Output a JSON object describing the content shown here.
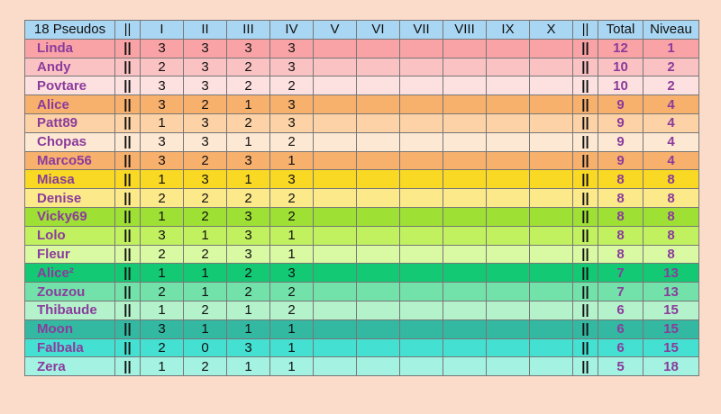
{
  "table": {
    "columns": [
      "18 Pseudos",
      "||",
      "I",
      "II",
      "III",
      "IV",
      "V",
      "VI",
      "VII",
      "VIII",
      "IX",
      "X",
      "||",
      "Total",
      "Niveau"
    ],
    "header_color": "#a9d6f2",
    "rows": [
      {
        "pseudo": "Linda",
        "scores": [
          3,
          3,
          3,
          3
        ],
        "total": 12,
        "niveau": 1,
        "color": "#f9a3a6"
      },
      {
        "pseudo": "Andy",
        "scores": [
          2,
          3,
          2,
          3
        ],
        "total": 10,
        "niveau": 2,
        "color": "#fbc2c3"
      },
      {
        "pseudo": "Povtare",
        "scores": [
          3,
          3,
          2,
          2
        ],
        "total": 10,
        "niveau": 2,
        "color": "#fde0e0"
      },
      {
        "pseudo": "Alice",
        "scores": [
          3,
          2,
          1,
          3
        ],
        "total": 9,
        "niveau": 4,
        "color": "#f8b06d"
      },
      {
        "pseudo": "Patt89",
        "scores": [
          1,
          3,
          2,
          3
        ],
        "total": 9,
        "niveau": 4,
        "color": "#fcd2a6"
      },
      {
        "pseudo": "Chopas",
        "scores": [
          3,
          3,
          1,
          2
        ],
        "total": 9,
        "niveau": 4,
        "color": "#fde8d3"
      },
      {
        "pseudo": "Marco56",
        "scores": [
          3,
          2,
          3,
          1
        ],
        "total": 9,
        "niveau": 4,
        "color": "#f8b06d"
      },
      {
        "pseudo": "Miasa",
        "scores": [
          1,
          3,
          1,
          3
        ],
        "total": 8,
        "niveau": 8,
        "color": "#f9d923"
      },
      {
        "pseudo": "Denise",
        "scores": [
          2,
          2,
          2,
          2
        ],
        "total": 8,
        "niveau": 8,
        "color": "#fbe98a"
      },
      {
        "pseudo": "Vicky69",
        "scores": [
          1,
          2,
          3,
          2
        ],
        "total": 8,
        "niveau": 8,
        "color": "#9fe034"
      },
      {
        "pseudo": "Lolo",
        "scores": [
          3,
          1,
          3,
          1
        ],
        "total": 8,
        "niveau": 8,
        "color": "#c2f15f"
      },
      {
        "pseudo": "Fleur",
        "scores": [
          2,
          2,
          3,
          1
        ],
        "total": 8,
        "niveau": 8,
        "color": "#daf9a3"
      },
      {
        "pseudo": "Alice²",
        "scores": [
          1,
          1,
          2,
          3
        ],
        "total": 7,
        "niveau": 13,
        "color": "#13c974"
      },
      {
        "pseudo": "Zouzou",
        "scores": [
          2,
          1,
          2,
          2
        ],
        "total": 7,
        "niveau": 13,
        "color": "#72e2aa"
      },
      {
        "pseudo": "Thibaude",
        "scores": [
          1,
          2,
          1,
          2
        ],
        "total": 6,
        "niveau": 15,
        "color": "#b3f2cb"
      },
      {
        "pseudo": "Moon",
        "scores": [
          3,
          1,
          1,
          1
        ],
        "total": 6,
        "niveau": 15,
        "color": "#33b8a2"
      },
      {
        "pseudo": "Falbala",
        "scores": [
          2,
          0,
          3,
          1
        ],
        "total": 6,
        "niveau": 15,
        "color": "#44e0d2"
      },
      {
        "pseudo": "Zera",
        "scores": [
          1,
          2,
          1,
          1
        ],
        "total": 5,
        "niveau": 18,
        "color": "#a3f2e2"
      }
    ]
  }
}
